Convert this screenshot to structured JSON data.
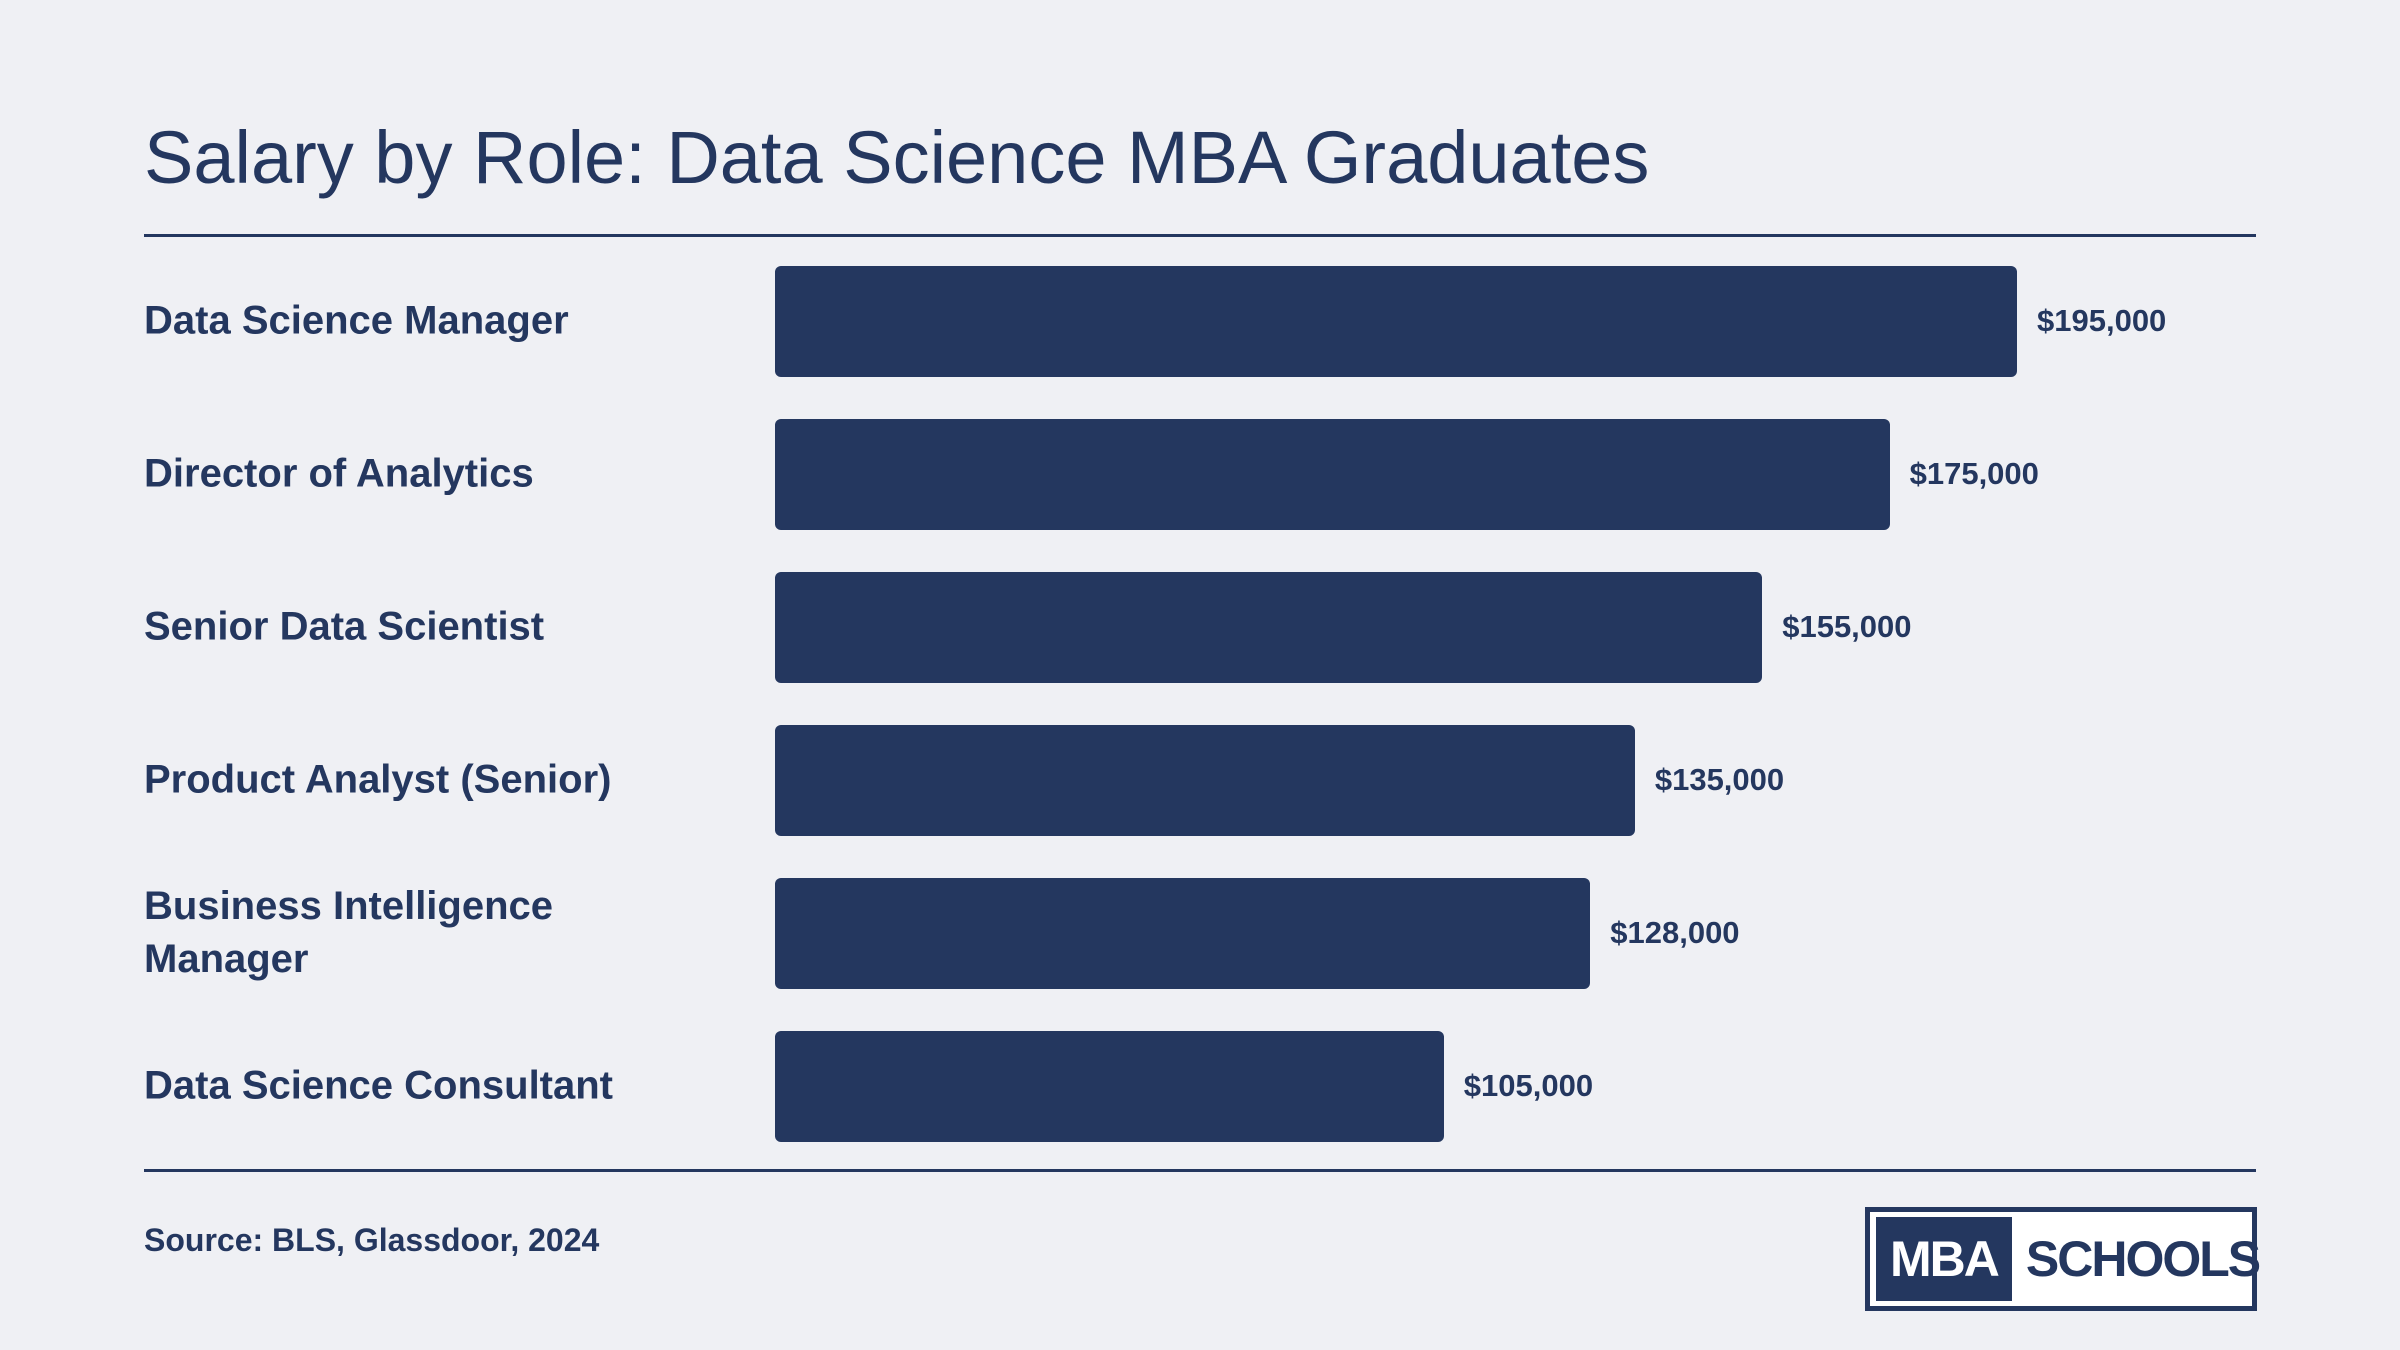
{
  "chart_data": {
    "type": "bar",
    "orientation": "horizontal",
    "title": "Salary by Role: Data Science MBA Graduates",
    "categories": [
      "Data Science Manager",
      "Director of Analytics",
      "Senior Data Scientist",
      "Product Analyst (Senior)",
      "Business Intelligence Manager",
      "Data Science Consultant"
    ],
    "values": [
      195000,
      175000,
      155000,
      135000,
      128000,
      105000
    ],
    "value_labels": [
      "$195,000",
      "$175,000",
      "$155,000",
      "$135,000",
      "$128,000",
      "$105,000"
    ],
    "xlim": [
      0,
      195000
    ],
    "grid": false,
    "bar_color": "#24375f"
  },
  "source": "Source: BLS, Glassdoor, 2024",
  "logo": {
    "mba": "MBA",
    "schools": "SCHOOLS"
  },
  "colors": {
    "background": "#eff0f4",
    "primary": "#24375f"
  }
}
